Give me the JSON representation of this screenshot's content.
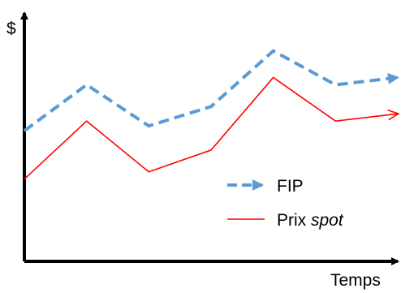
{
  "chart_data": {
    "type": "line",
    "title": "",
    "xlabel": "Temps",
    "ylabel": "$",
    "axes_with_arrows": true,
    "ticks": false,
    "grid": false,
    "legend_position": "center-right",
    "x": [
      0,
      1,
      2,
      3,
      4,
      5,
      6
    ],
    "series": [
      {
        "name": "FIP",
        "style": "dashed-arrow",
        "color": "#5b9bd5",
        "values": [
          5.4,
          7.3,
          5.6,
          6.4,
          8.7,
          7.3,
          7.6
        ]
      },
      {
        "name_parts": [
          "Prix ",
          "spot"
        ],
        "name_italic_part": "spot",
        "style": "solid-arrow",
        "color": "#ff0000",
        "values": [
          3.4,
          5.8,
          3.7,
          4.6,
          7.6,
          5.8,
          6.1
        ]
      }
    ],
    "ylim": [
      0,
      10
    ],
    "xlim": [
      0,
      6
    ]
  },
  "colors": {
    "axis": "#000000",
    "fip": "#5b9bd5",
    "spot": "#ff0000"
  }
}
